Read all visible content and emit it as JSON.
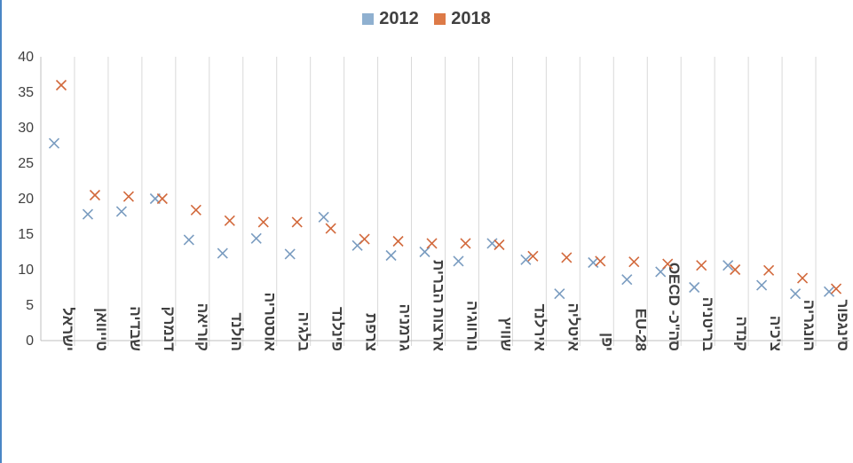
{
  "chart_data": {
    "type": "scatter",
    "title": "",
    "xlabel": "",
    "ylabel": "",
    "ylim": [
      0,
      40
    ],
    "yticks": [
      "0",
      "5",
      "10",
      "15",
      "20",
      "25",
      "30",
      "35",
      "40"
    ],
    "grid": "vertical category separators",
    "legend_position": "top-center",
    "marker": "x",
    "categories": [
      "ישראל",
      "טייוואן",
      "שבדיה",
      "דנמרק",
      "קוריאה",
      "הולנד",
      "אוסטריה",
      "בלגיה",
      "פינלנד",
      "צרפת",
      "גרמניה",
      "ארצות הברית",
      "נורווגיה",
      "שוויץ",
      "אירלנד",
      "איטליה",
      "יפן",
      "EU-28",
      "OECD -סה\"כ",
      "בריטניה",
      "קנדה",
      "צ'כיה",
      "הונגריה",
      "סינגפור"
    ],
    "series": [
      {
        "name": "2012",
        "color": "#7a9cc0",
        "values": [
          27.8,
          17.8,
          18.2,
          20.0,
          14.2,
          12.3,
          14.4,
          12.2,
          17.4,
          13.4,
          12.0,
          12.5,
          11.2,
          13.7,
          11.4,
          6.6,
          11.0,
          8.6,
          9.7,
          7.5,
          10.6,
          7.8,
          6.6,
          6.9
        ]
      },
      {
        "name": "2018",
        "color": "#d2693c",
        "values": [
          36.0,
          20.5,
          20.3,
          20.0,
          18.4,
          16.9,
          16.7,
          16.7,
          15.8,
          14.3,
          14.0,
          13.7,
          13.7,
          13.5,
          11.9,
          11.7,
          11.2,
          11.1,
          10.8,
          10.6,
          10.0,
          9.9,
          8.8,
          7.3
        ]
      }
    ]
  }
}
